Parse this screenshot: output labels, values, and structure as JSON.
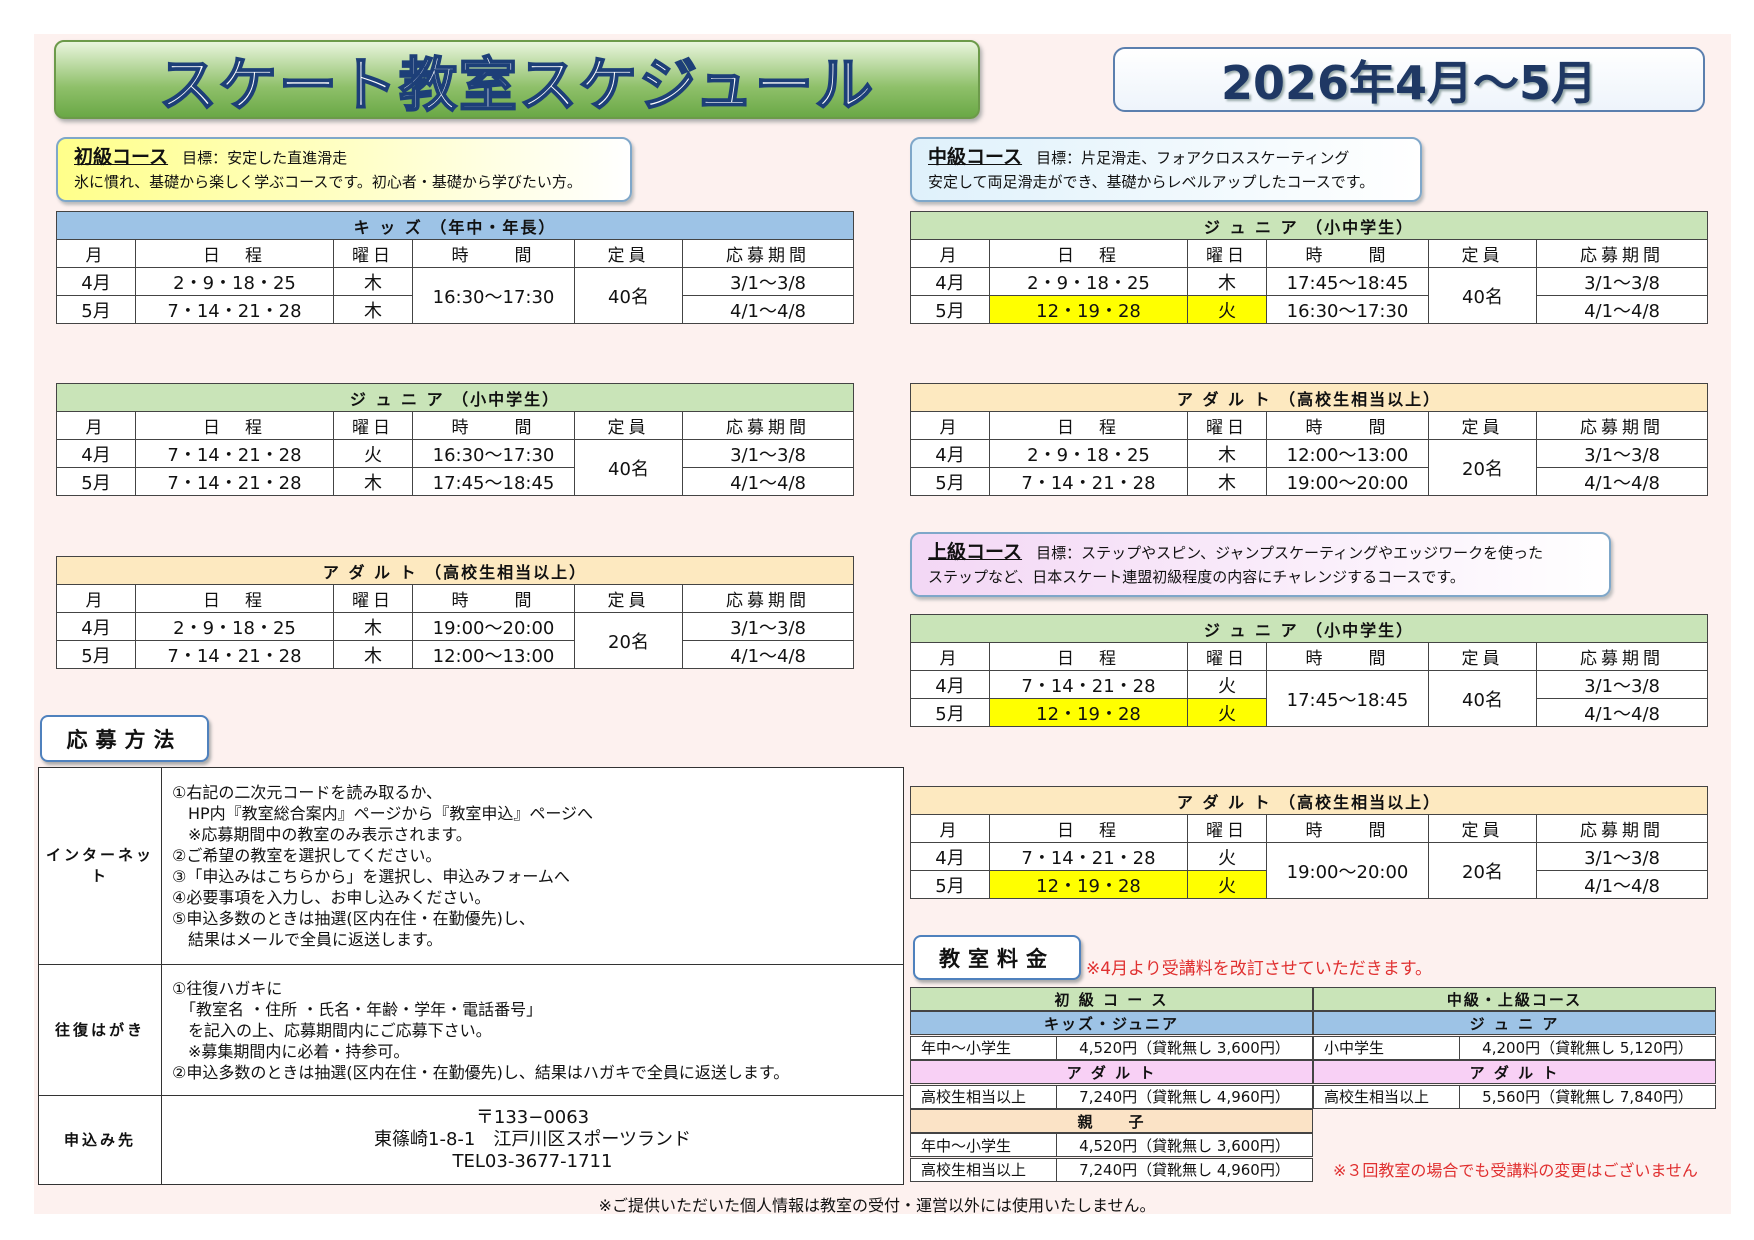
{
  "header": {
    "title": "スケート教室スケジュール",
    "period": "2026年4月～5月"
  },
  "courses": [
    {
      "name": "初級コース",
      "goal": "目標：安定した直進滑走",
      "description": "氷に慣れ、基礎から楽しく学ぶコースです。初心者・基礎から学びたい方。",
      "color": "#ffff8a"
    },
    {
      "name": "中級コース",
      "goal": "目標：片足滑走、フォアクロススケーティング",
      "description": "安定して両足滑走ができ、基礎からレベルアップしたコースです。",
      "color": "#dff1fb"
    },
    {
      "name": "上級コース",
      "goal": "目標：ステップやスピン、ジャンプスケーティングやエッジワークを使った",
      "description": "ステップなど、日本スケート連盟初級程度の内容にチャレンジするコースです。",
      "color": "#f3d7f5"
    }
  ],
  "schedules": [
    {
      "title": "キ ッ ズ （年中・年長）",
      "color": "#9dc3e6",
      "columns": [
        "月",
        "日　程",
        "曜日",
        "時　　間",
        "定員",
        "応募期間"
      ],
      "rows": [
        {
          "month": "4月",
          "dates": "2・9・18・25",
          "day": "木",
          "time": "16:30～17:30",
          "capacity": "40名",
          "period": "3/1～3/8"
        },
        {
          "month": "5月",
          "dates": "7・14・21・28",
          "day": "木",
          "period": "4/1～4/8"
        }
      ]
    },
    {
      "title": "ジ ュ ニ ア （小中学生）",
      "color": "#c9e4b8",
      "columns": [
        "月",
        "日　程",
        "曜日",
        "時　　間",
        "定員",
        "応募期間"
      ],
      "rows": [
        {
          "month": "4月",
          "dates": "7・14・21・28",
          "day": "火",
          "time": "16:30～17:30",
          "capacity": "40名",
          "period": "3/1～3/8"
        },
        {
          "month": "5月",
          "dates": "7・14・21・28",
          "day": "木",
          "time": "17:45～18:45",
          "period": "4/1～4/8"
        }
      ]
    },
    {
      "title": "ア ダ ル ト （高校生相当以上）",
      "color": "#fde9c0",
      "columns": [
        "月",
        "日　程",
        "曜日",
        "時　　間",
        "定員",
        "応募期間"
      ],
      "rows": [
        {
          "month": "4月",
          "dates": "2・9・18・25",
          "day": "木",
          "time": "19:00～20:00",
          "capacity": "20名",
          "period": "3/1～3/8"
        },
        {
          "month": "5月",
          "dates": "7・14・21・28",
          "day": "木",
          "time": "12:00～13:00",
          "period": "4/1～4/8"
        }
      ]
    },
    {
      "title": "ジ ュ ニ ア （小中学生）",
      "color": "#c9e4b8",
      "columns": [
        "月",
        "日　程",
        "曜日",
        "時　　間",
        "定員",
        "応募期間"
      ],
      "rows": [
        {
          "month": "4月",
          "dates": "2・9・18・25",
          "day": "木",
          "time": "17:45～18:45",
          "capacity": "40名",
          "period": "3/1～3/8"
        },
        {
          "month": "5月",
          "dates": "12・19・28",
          "day": "火",
          "time": "16:30～17:30",
          "period": "4/1～4/8",
          "highlight": [
            "dates",
            "day"
          ]
        }
      ]
    },
    {
      "title": "ア ダ ル ト （高校生相当以上）",
      "color": "#fde9c0",
      "columns": [
        "月",
        "日　程",
        "曜日",
        "時　　間",
        "定員",
        "応募期間"
      ],
      "rows": [
        {
          "month": "4月",
          "dates": "2・9・18・25",
          "day": "木",
          "time": "12:00～13:00",
          "capacity": "20名",
          "period": "3/1～3/8"
        },
        {
          "month": "5月",
          "dates": "7・14・21・28",
          "day": "木",
          "time": "19:00～20:00",
          "period": "4/1～4/8"
        }
      ]
    },
    {
      "title": "ジ ュ ニ ア （小中学生）",
      "color": "#c9e4b8",
      "columns": [
        "月",
        "日　程",
        "曜日",
        "時　　間",
        "定員",
        "応募期間"
      ],
      "rows": [
        {
          "month": "4月",
          "dates": "7・14・21・28",
          "day": "火",
          "time": "17:45～18:45",
          "capacity": "40名",
          "period": "3/1～3/8"
        },
        {
          "month": "5月",
          "dates": "12・19・28",
          "day": "火",
          "period": "4/1～4/8",
          "highlight": [
            "dates",
            "day"
          ]
        }
      ]
    },
    {
      "title": "ア ダ ル ト （高校生相当以上）",
      "color": "#fde9c0",
      "columns": [
        "月",
        "日　程",
        "曜日",
        "時　　間",
        "定員",
        "応募期間"
      ],
      "rows": [
        {
          "month": "4月",
          "dates": "7・14・21・28",
          "day": "火",
          "time": "19:00～20:00",
          "capacity": "20名",
          "period": "3/1～3/8"
        },
        {
          "month": "5月",
          "dates": "12・19・28",
          "day": "火",
          "period": "4/1～4/8",
          "highlight": [
            "dates",
            "day"
          ]
        }
      ]
    }
  ],
  "application": {
    "title": "応募方法",
    "rows": [
      {
        "label": "インターネット",
        "lines": [
          "①右記の二次元コードを読み取るか、",
          "　HP内『教室総合案内』ページから『教室申込』ページへ",
          "　※応募期間中の教室のみ表示されます。",
          "②ご希望の教室を選択してください。",
          "③「申込みはこちらから」を選択し、申込みフォームへ",
          "④必要事項を入力し、お申し込みください。",
          "⑤申込多数のときは抽選(区内在住・在勤優先)し、",
          "　結果はメールで全員に返送します。"
        ]
      },
      {
        "label": "往復はがき",
        "lines": [
          "①往復ハガキに",
          "　「教室名 ・住所 ・氏名・年齢・学年・電話番号」",
          "　を記入の上、応募期間内にご応募下さい。",
          "　※募集期間内に必着・持参可。",
          "②申込多数のときは抽選(区内在住・在勤優先)し、結果はハガキで全員に返送します。"
        ]
      },
      {
        "label": "申込み先",
        "lines": [
          "〒133−0063",
          "東篠崎1-8-1　江戸川区スポーツランド",
          "TEL03-3677-1711"
        ]
      }
    ]
  },
  "fees": {
    "title": "教室料金",
    "note": "※4月より受講料を改訂させていただきます。",
    "footnote": "※３回教室の場合でも受講料の変更はございません",
    "groups": [
      {
        "name": "初 級 コ ー ス",
        "color": "#c9e4b8",
        "sections": [
          {
            "name": "キッズ・ジュニア",
            "color": "#9dc3e6",
            "rows": [
              {
                "target": "年中～小学生",
                "fee": "4,520円（貸靴無し 3,600円）"
              }
            ]
          },
          {
            "name": "ア ダ ル ト",
            "color": "#f8d0f5",
            "rows": [
              {
                "target": "高校生相当以上",
                "fee": "7,240円（貸靴無し 4,960円）"
              }
            ]
          },
          {
            "name": "親　　子",
            "color": "#fbe3c6",
            "rows": [
              {
                "target": "年中～小学生",
                "fee": "4,520円（貸靴無し 3,600円）"
              },
              {
                "target": "高校生相当以上",
                "fee": "7,240円（貸靴無し 4,960円）"
              }
            ]
          }
        ]
      },
      {
        "name": "中級・上級コース",
        "color": "#c9e4b8",
        "sections": [
          {
            "name": "ジ ュ ニ ア",
            "color": "#9dc3e6",
            "rows": [
              {
                "target": "小中学生",
                "fee": "4,200円（貸靴無し 5,120円）"
              }
            ]
          },
          {
            "name": "ア ダ ル ト",
            "color": "#f8d0f5",
            "rows": [
              {
                "target": "高校生相当以上",
                "fee": "5,560円（貸靴無し 7,840円）"
              }
            ]
          }
        ]
      }
    ]
  },
  "footer": "※ご提供いただいた個人情報は教室の受付・運営以外には使用いたしません。"
}
